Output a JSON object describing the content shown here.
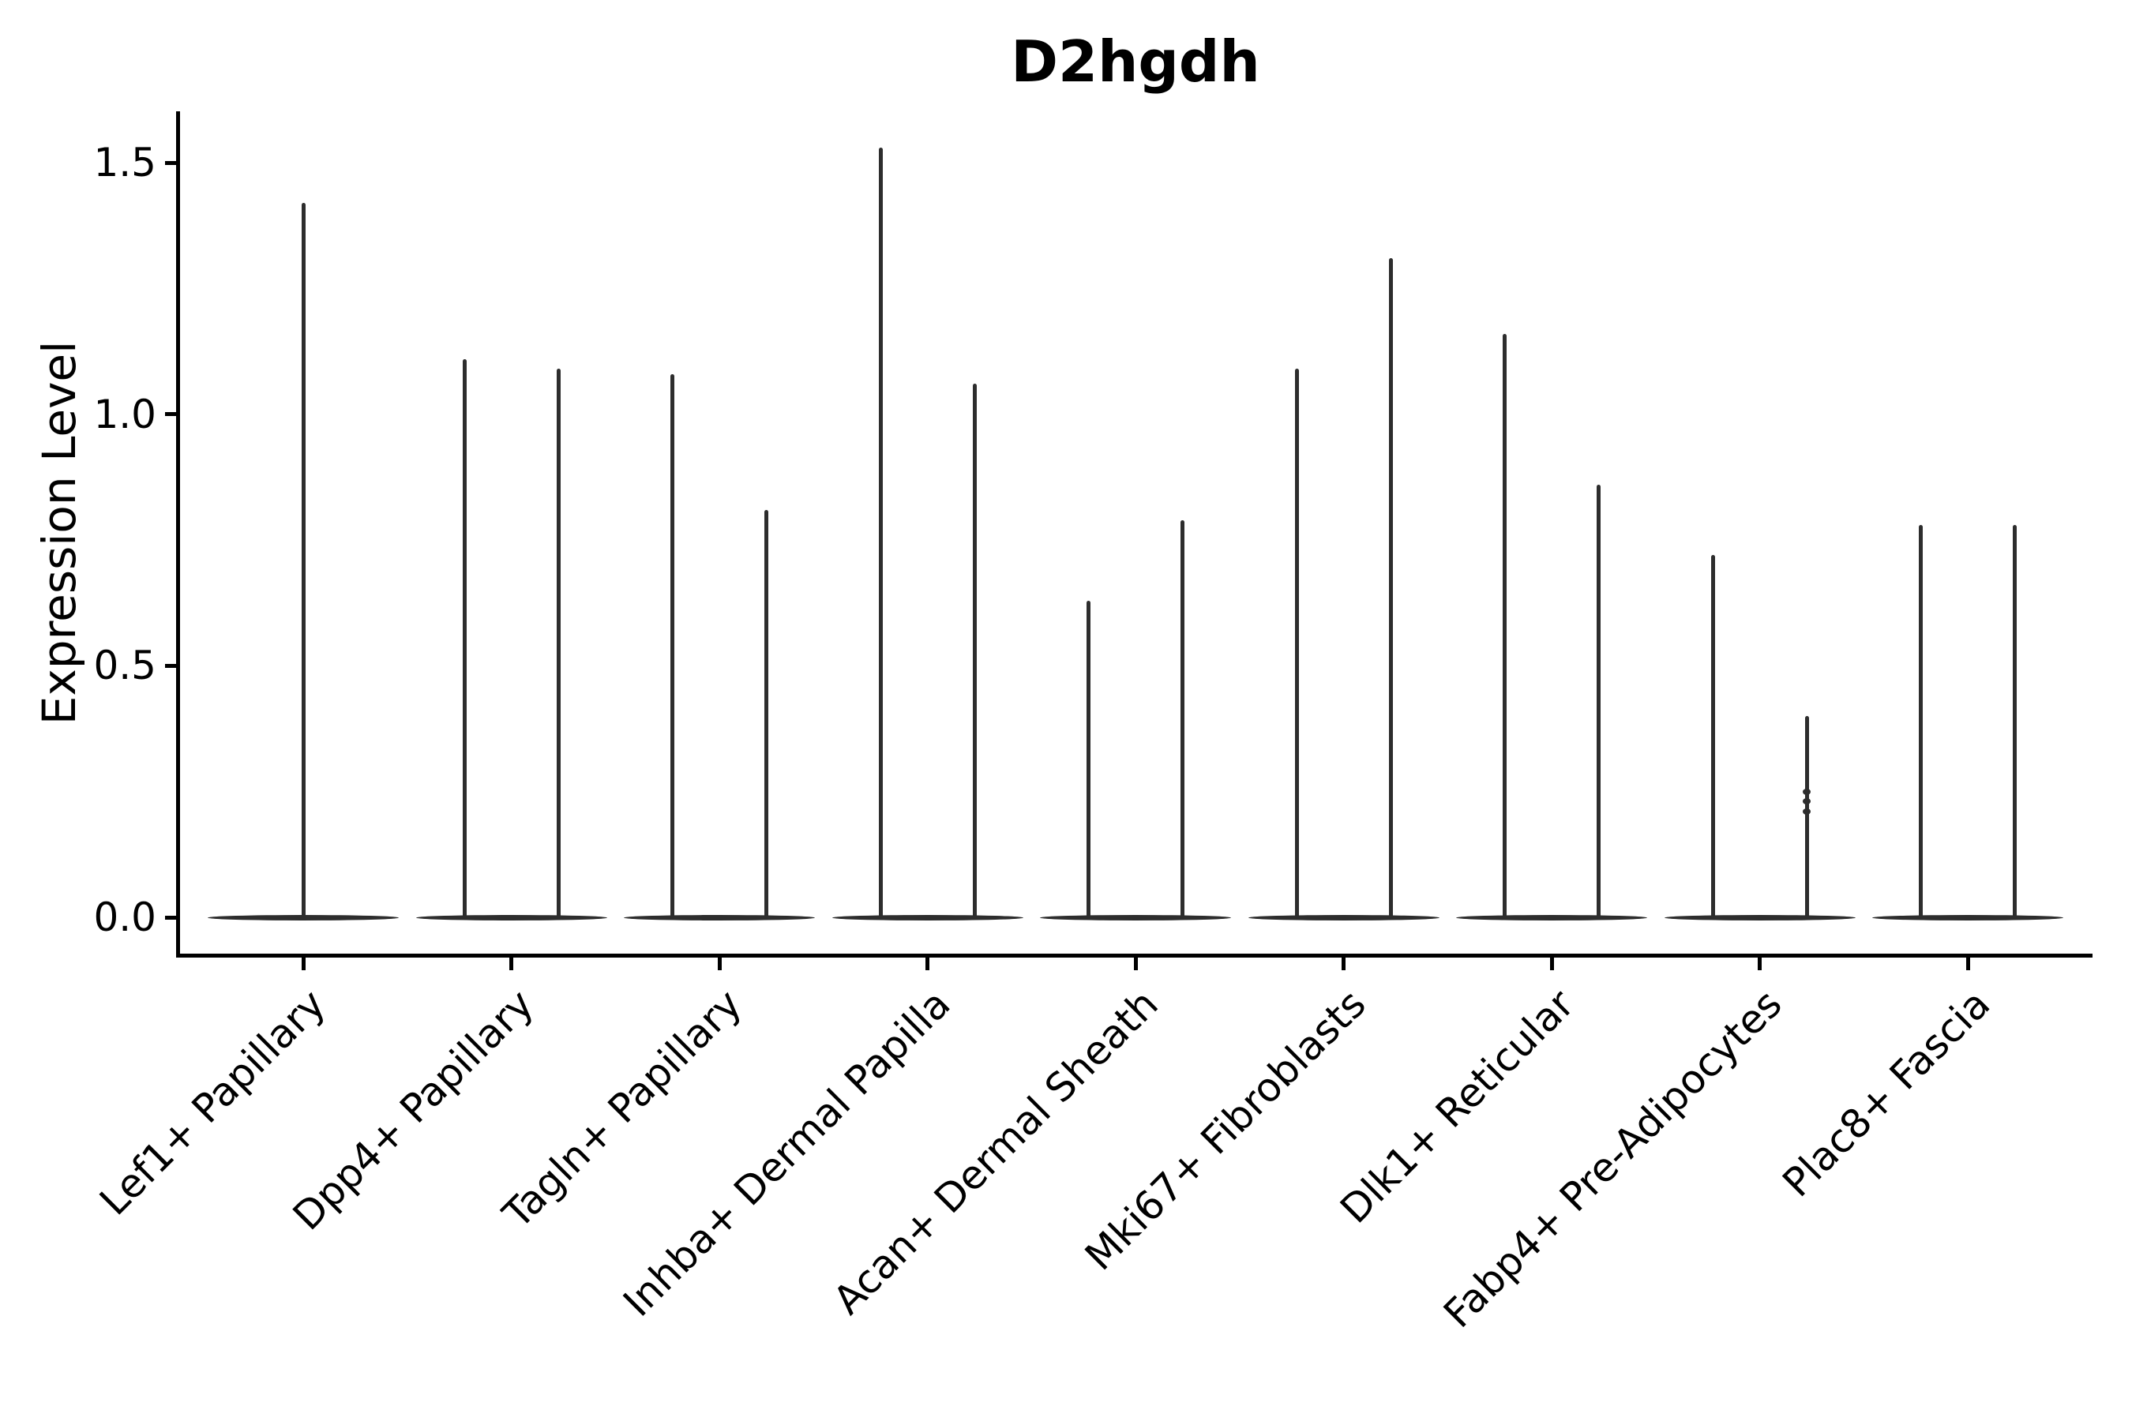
{
  "chart_data": {
    "type": "violin",
    "title": "D2hgdh",
    "ylabel": "Expression Level",
    "xlabel": "",
    "ylim": [
      0,
      1.58
    ],
    "yticks": [
      0.0,
      0.5,
      1.0,
      1.5
    ],
    "ytick_labels": [
      "0.0",
      "0.5",
      "1.0",
      "1.5"
    ],
    "grid": false,
    "legend": "none",
    "categories": [
      "Lef1+ Papillary",
      "Dpp4+ Papillary",
      "Tagln+ Papillary",
      "Inhba+ Dermal Papilla",
      "Acan+ Dermal Sheath",
      "Mki67+ Fibroblasts",
      "Dlk1+ Reticular",
      "Fabp4+ Pre-Adipocytes",
      "Plac8+ Fascia"
    ],
    "violins": [
      {
        "category": "Lef1+ Papillary",
        "split": false,
        "baseline_value": 0.0,
        "max_expression": [
          1.42
        ],
        "outlier_points": []
      },
      {
        "category": "Dpp4+ Papillary",
        "split": true,
        "baseline_value": 0.0,
        "max_expression": [
          1.11,
          1.09
        ],
        "outlier_points": []
      },
      {
        "category": "Tagln+ Papillary",
        "split": true,
        "baseline_value": 0.0,
        "max_expression": [
          1.08,
          0.81
        ],
        "outlier_points": []
      },
      {
        "category": "Inhba+ Dermal Papilla",
        "split": true,
        "baseline_value": 0.0,
        "max_expression": [
          1.53,
          1.06
        ],
        "outlier_points": []
      },
      {
        "category": "Acan+ Dermal Sheath",
        "split": true,
        "baseline_value": 0.0,
        "max_expression": [
          0.63,
          0.79
        ],
        "outlier_points": []
      },
      {
        "category": "Mki67+ Fibroblasts",
        "split": true,
        "baseline_value": 0.0,
        "max_expression": [
          1.09,
          1.31
        ],
        "outlier_points": []
      },
      {
        "category": "Dlk1+ Reticular",
        "split": true,
        "baseline_value": 0.0,
        "max_expression": [
          1.16,
          0.86
        ],
        "outlier_points": []
      },
      {
        "category": "Fabp4+ Pre-Adipocytes",
        "split": true,
        "baseline_value": 0.0,
        "max_expression": [
          0.72,
          0.4
        ],
        "outlier_points": [
          {
            "violin": 1,
            "values": [
              0.25,
              0.23,
              0.21
            ]
          }
        ]
      },
      {
        "category": "Plac8+ Fascia",
        "split": true,
        "baseline_value": 0.0,
        "max_expression": [
          0.78,
          0.78
        ],
        "outlier_points": []
      }
    ],
    "colors": {
      "violin_stroke": "#2d2d2d",
      "axis": "#000000",
      "text": "#000000",
      "background": "#ffffff"
    }
  }
}
